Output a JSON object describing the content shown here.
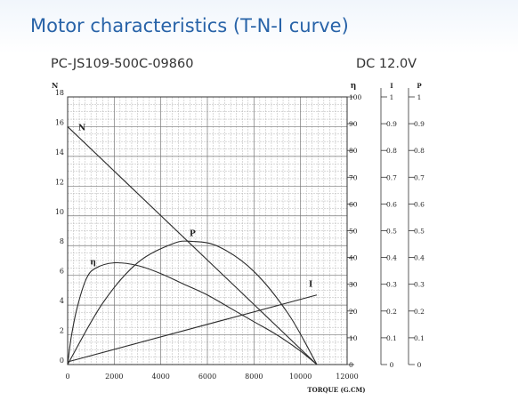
{
  "header": {
    "title": "Motor characteristics (T-N-I curve)",
    "model": "PC-JS109-500C-09860",
    "voltage": "DC 12.0V"
  },
  "chart_data": {
    "type": "line",
    "title": "",
    "xlabel": "TORQUE (G.CM)",
    "x_ticks": [
      0,
      2000,
      4000,
      6000,
      8000,
      10000,
      12000
    ],
    "xlim": [
      0,
      12000
    ],
    "grid": true,
    "axes": {
      "N": {
        "label": "N",
        "range": [
          0,
          18
        ],
        "ticks": [
          0,
          2,
          4,
          6,
          8,
          10,
          12,
          14,
          16,
          18
        ],
        "position": "left"
      },
      "eta": {
        "label": "η",
        "range": [
          0,
          100
        ],
        "ticks": [
          0,
          10,
          20,
          30,
          40,
          50,
          60,
          70,
          80,
          90,
          100
        ],
        "position": "right"
      },
      "I": {
        "label": "I",
        "range": [
          0,
          1
        ],
        "ticks": [
          "0",
          "0.1",
          "0.2",
          "0.3",
          "0.4",
          "0.5",
          "0.6",
          "0.7",
          "0.8",
          "0.9",
          "1"
        ],
        "position": "right"
      },
      "P": {
        "label": "P",
        "range": [
          0,
          1
        ],
        "ticks": [
          "0",
          "0.1",
          "0.2",
          "0.3",
          "0.4",
          "0.5",
          "0.6",
          "0.7",
          "0.8",
          "0.9",
          "1"
        ],
        "position": "right"
      }
    },
    "series": [
      {
        "name": "N",
        "axis": "N",
        "x": [
          0,
          10700
        ],
        "y": [
          16,
          0
        ]
      },
      {
        "name": "P",
        "axis": "eta",
        "x": [
          0,
          1500,
          3000,
          4500,
          5350,
          6500,
          8000,
          9500,
          10700
        ],
        "y": [
          0,
          22.9,
          38.0,
          45.1,
          46.0,
          44.0,
          34.8,
          18.6,
          0
        ]
      },
      {
        "name": "η",
        "axis": "eta",
        "x": [
          0,
          150,
          400,
          800,
          1200,
          2000,
          3000,
          4000,
          5000,
          6000,
          7000,
          8000,
          9000,
          10000,
          10700
        ],
        "y": [
          0,
          10,
          21,
          32,
          36,
          38,
          37,
          34,
          30,
          26,
          21,
          16,
          11,
          5,
          0
        ]
      },
      {
        "name": "I",
        "axis": "eta",
        "x": [
          0,
          10700
        ],
        "y": [
          1,
          26
        ]
      }
    ]
  }
}
